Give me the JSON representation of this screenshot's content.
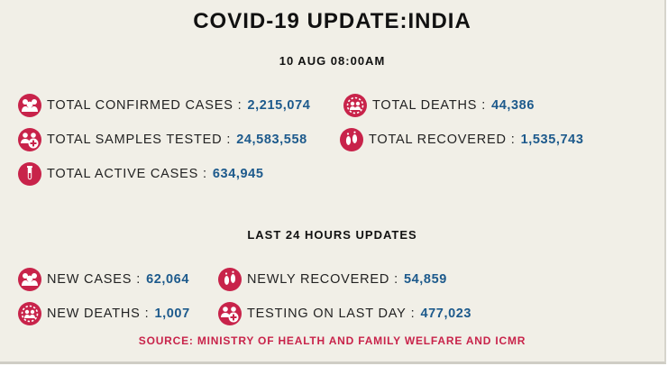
{
  "header": {
    "title": "COVID-19 UPDATE:INDIA",
    "timestamp": "10 AUG 08:00AM"
  },
  "totals": [
    {
      "label": "TOTAL CONFIRMED CASES",
      "value": "2,215,074",
      "icon": "people-icon"
    },
    {
      "label": "TOTAL DEATHS",
      "value": "44,386",
      "icon": "virus-people-icon"
    },
    {
      "label": "TOTAL SAMPLES TESTED",
      "value": "24,583,558",
      "icon": "people-medical-icon"
    },
    {
      "label": "TOTAL RECOVERED",
      "value": "1,535,743",
      "icon": "footprints-icon"
    },
    {
      "label": "TOTAL ACTIVE CASES",
      "value": "634,945",
      "icon": "test-tube-icon"
    }
  ],
  "last24": {
    "heading": "LAST 24 HOURS UPDATES",
    "items": [
      {
        "label": "NEW CASES",
        "value": "62,064",
        "icon": "people-icon"
      },
      {
        "label": "NEWLY RECOVERED",
        "value": "54,859",
        "icon": "footprints-icon"
      },
      {
        "label": "NEW DEATHS",
        "value": "1,007",
        "icon": "virus-people-icon"
      },
      {
        "label": "TESTING ON LAST DAY",
        "value": "477,023",
        "icon": "people-medical-icon"
      }
    ]
  },
  "source": "SOURCE: MINISTRY OF HEALTH AND FAMILY WELFARE AND ICMR",
  "colors": {
    "panel_background": "#f1efe7",
    "icon_red": "#c8234a",
    "value_blue": "#1d5a8c",
    "source_red": "#c8234a"
  }
}
